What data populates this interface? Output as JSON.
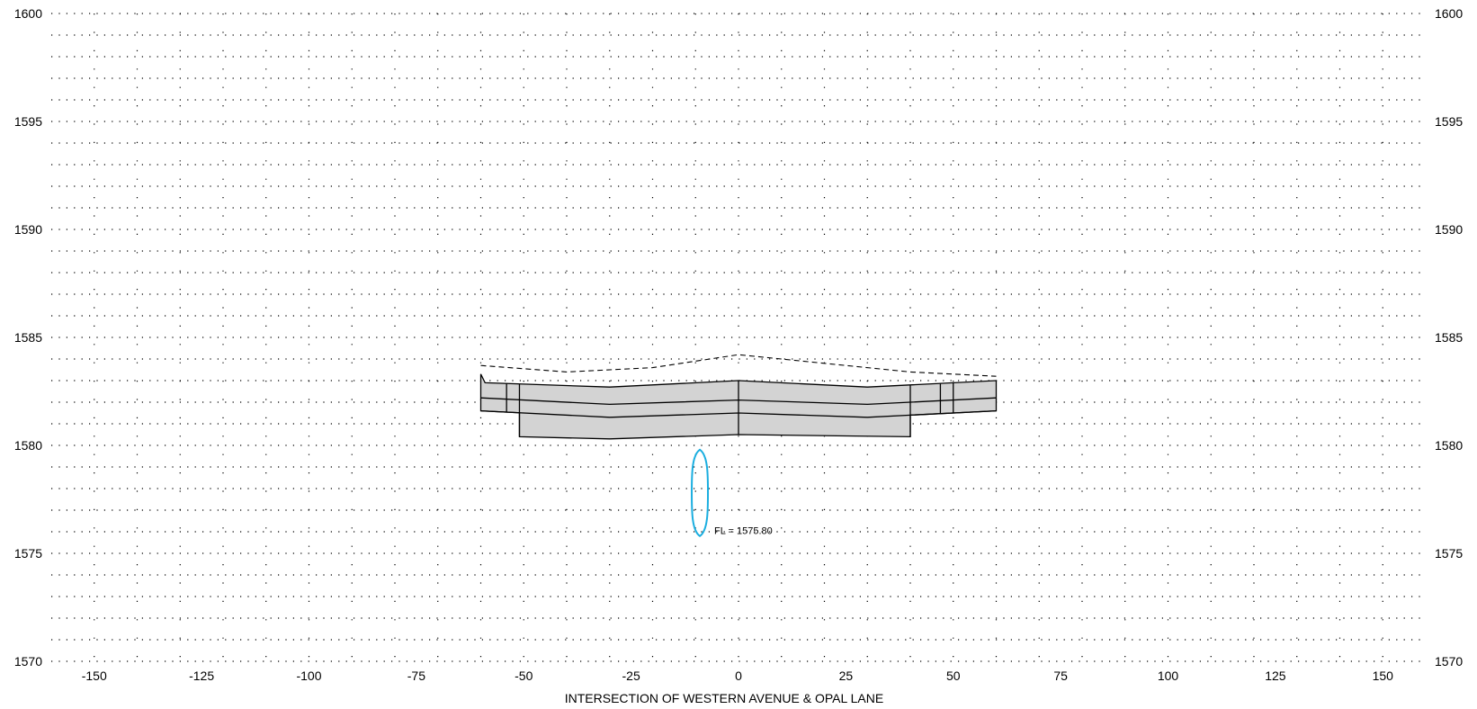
{
  "title": "INTERSECTION OF WESTERN AVENUE & OPAL LANE",
  "x_axis": {
    "range": [
      -160,
      160
    ],
    "ticks": [
      -150,
      -125,
      -100,
      -75,
      -50,
      -25,
      0,
      25,
      50,
      75,
      100,
      125,
      150
    ]
  },
  "y_axis": {
    "range": [
      1570,
      1600
    ],
    "ticks": [
      1570,
      1575,
      1580,
      1585,
      1590,
      1595,
      1600
    ],
    "minor_step": 1
  },
  "grid": "dotted",
  "culvert": {
    "label": "FL = 1575.80",
    "color": "#1aaee0",
    "center_station": -9,
    "flowline_elevation": 1575.8,
    "top_elevation": 1579.8
  },
  "ground_line": {
    "style": "dashed",
    "points": [
      [
        -60,
        1583.7
      ],
      [
        -40,
        1583.4
      ],
      [
        -20,
        1583.6
      ],
      [
        0,
        1584.2
      ],
      [
        20,
        1583.8
      ],
      [
        40,
        1583.4
      ],
      [
        60,
        1583.2
      ]
    ]
  },
  "pavement": {
    "fill": "#d3d3d3",
    "top": [
      [
        -60,
        1583.3
      ],
      [
        -59,
        1582.9
      ],
      [
        -30,
        1582.7
      ],
      [
        0,
        1583.0
      ],
      [
        30,
        1582.7
      ],
      [
        60,
        1583.0
      ]
    ],
    "layer1": [
      [
        -60,
        1582.2
      ],
      [
        -30,
        1581.9
      ],
      [
        0,
        1582.1
      ],
      [
        30,
        1581.9
      ],
      [
        60,
        1582.2
      ]
    ],
    "layer2": [
      [
        -60,
        1581.6
      ],
      [
        -30,
        1581.3
      ],
      [
        0,
        1581.5
      ],
      [
        30,
        1581.3
      ],
      [
        60,
        1581.6
      ]
    ],
    "base": [
      [
        -51,
        1580.4
      ],
      [
        -30,
        1580.3
      ],
      [
        0,
        1580.5
      ],
      [
        40,
        1580.4
      ]
    ],
    "outer_left": -60,
    "outer_right": 60,
    "base_left": -51,
    "base_right": 40,
    "verticals": [
      -54,
      -51,
      0,
      40,
      47,
      50
    ]
  }
}
